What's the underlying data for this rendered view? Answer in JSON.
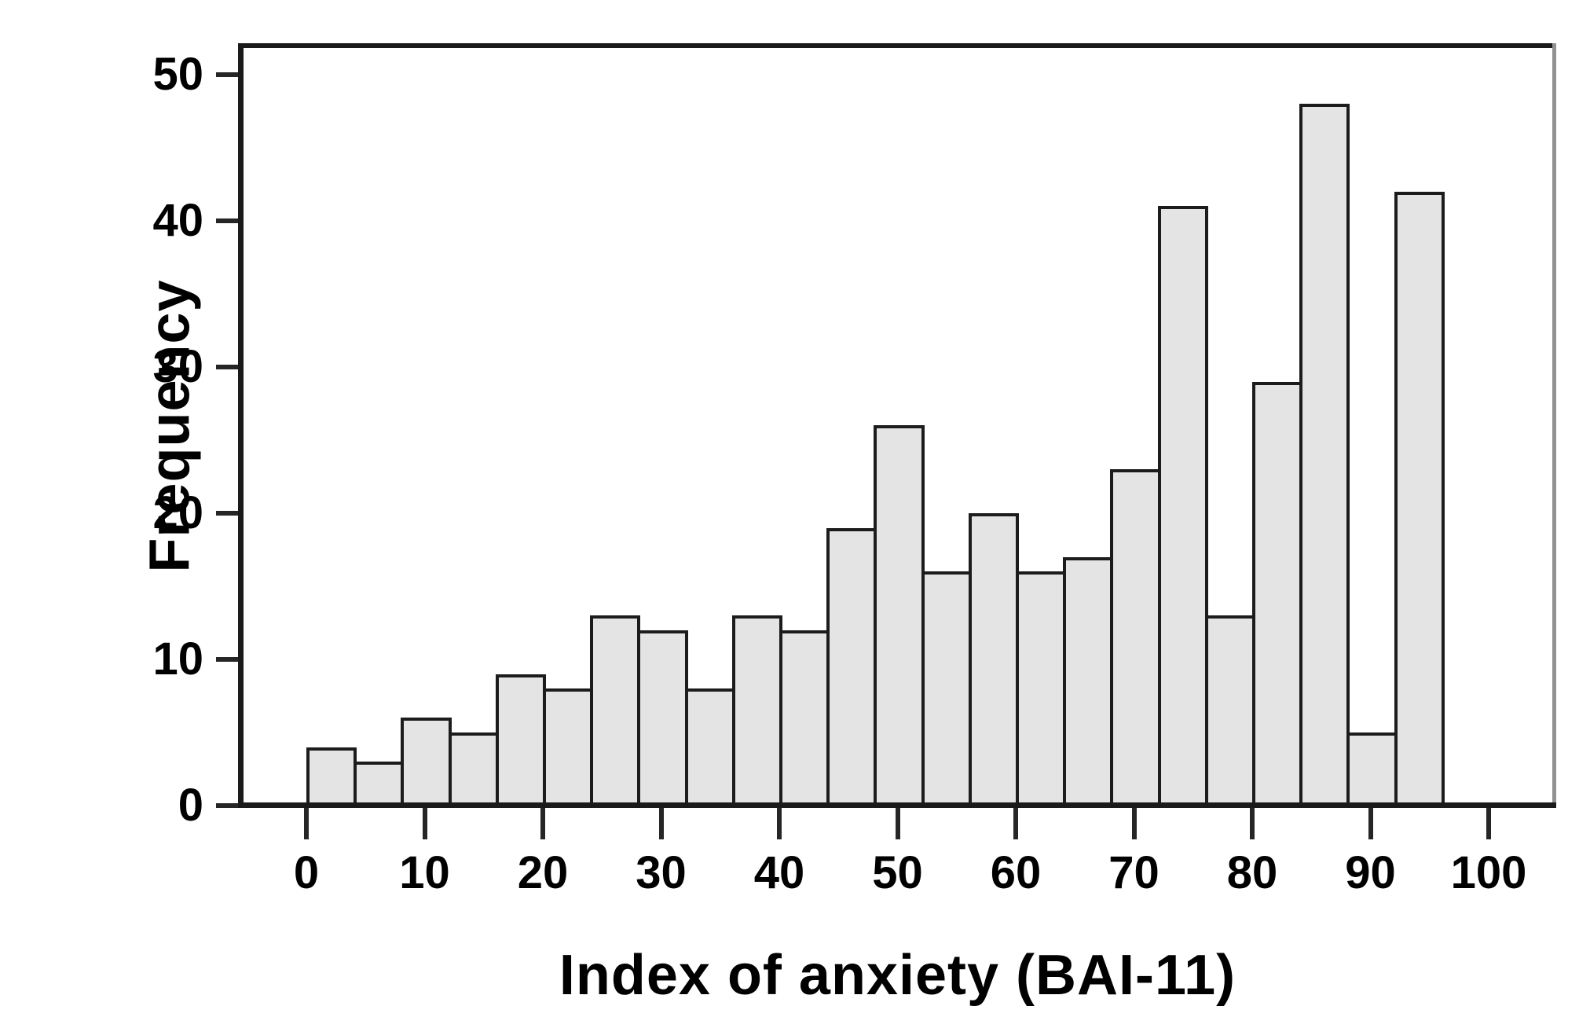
{
  "chart_data": {
    "type": "bar",
    "subtype": "histogram",
    "title": "",
    "xlabel": "Index of anxiety (BAI-11)",
    "ylabel": "Frequency",
    "bin_start": 0,
    "bin_width": 4,
    "values": [
      4,
      3,
      6,
      5,
      9,
      8,
      13,
      12,
      8,
      13,
      12,
      19,
      26,
      16,
      20,
      16,
      17,
      23,
      41,
      13,
      29,
      48,
      5,
      42
    ],
    "bin_edges": [
      0,
      4,
      8,
      12,
      16,
      20,
      24,
      28,
      32,
      36,
      40,
      44,
      48,
      52,
      56,
      60,
      64,
      68,
      72,
      76,
      80,
      84,
      88,
      92,
      96
    ],
    "total_count": 408,
    "x_ticks": [
      {
        "value": 0,
        "label": "0"
      },
      {
        "value": 10,
        "label": "10"
      },
      {
        "value": 20,
        "label": "20"
      },
      {
        "value": 30,
        "label": "30"
      },
      {
        "value": 40,
        "label": "40"
      },
      {
        "value": 50,
        "label": "50"
      },
      {
        "value": 60,
        "label": "60"
      },
      {
        "value": 70,
        "label": "70"
      },
      {
        "value": 80,
        "label": "80"
      },
      {
        "value": 90,
        "label": "90"
      },
      {
        "value": 100,
        "label": "100"
      }
    ],
    "y_ticks": [
      {
        "value": 0,
        "label": "0"
      },
      {
        "value": 10,
        "label": "10"
      },
      {
        "value": 20,
        "label": "20"
      },
      {
        "value": 30,
        "label": "30"
      },
      {
        "value": 40,
        "label": "40"
      },
      {
        "value": 50,
        "label": "50"
      }
    ],
    "xlim": [
      -5.5,
      104
    ],
    "ylim": [
      0,
      52
    ],
    "grid": false,
    "legend": null,
    "colors": {
      "background": "#ffffff",
      "bar_fill": "#e4e4e4",
      "bar_border": "#1c1c1c",
      "axis_line": "#1a1a1a",
      "frame_right": "#929292",
      "tick_mark": "#262626",
      "text": "#000000"
    }
  }
}
